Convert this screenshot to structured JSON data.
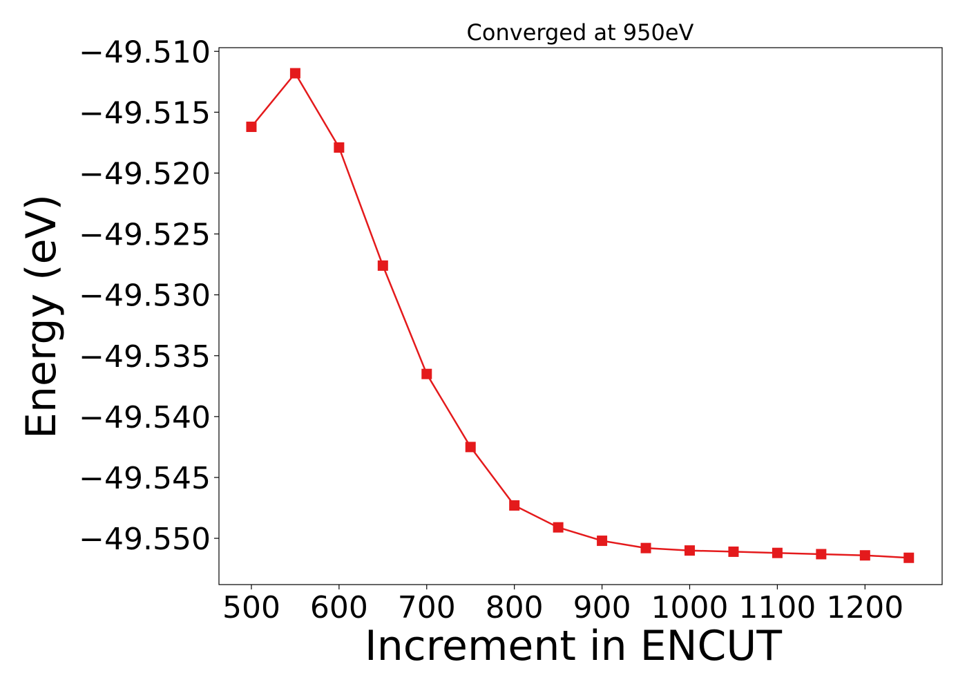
{
  "chart_data": {
    "type": "line",
    "title": "Converged at 950eV",
    "xlabel": "Increment in ENCUT",
    "ylabel": "Energy (eV)",
    "x": [
      500,
      550,
      600,
      650,
      700,
      750,
      800,
      850,
      900,
      950,
      1000,
      1050,
      1100,
      1150,
      1200,
      1250
    ],
    "series": [
      {
        "values": [
          -49.5162,
          -49.5118,
          -49.5179,
          -49.5276,
          -49.5365,
          -49.5425,
          -49.5473,
          -49.5491,
          -49.5502,
          -49.5508,
          -49.551,
          -49.5511,
          -49.5512,
          -49.5513,
          -49.5514,
          -49.5516
        ],
        "color": "#e41a1c",
        "marker": "square"
      }
    ],
    "xlim": [
      463,
      1288
    ],
    "ylim": [
      -49.5538,
      -49.5097
    ],
    "xticks": [
      500,
      600,
      700,
      800,
      900,
      1000,
      1100,
      1200
    ],
    "xtick_labels": [
      "500",
      "600",
      "700",
      "800",
      "900",
      "1000",
      "1100",
      "1200"
    ],
    "yticks": [
      -49.51,
      -49.515,
      -49.52,
      -49.525,
      -49.53,
      -49.535,
      -49.54,
      -49.545,
      -49.55
    ],
    "ytick_labels": [
      "−49.510",
      "−49.515",
      "−49.520",
      "−49.525",
      "−49.530",
      "−49.535",
      "−49.540",
      "−49.545",
      "−49.550"
    ],
    "grid": false,
    "legend": "none"
  }
}
